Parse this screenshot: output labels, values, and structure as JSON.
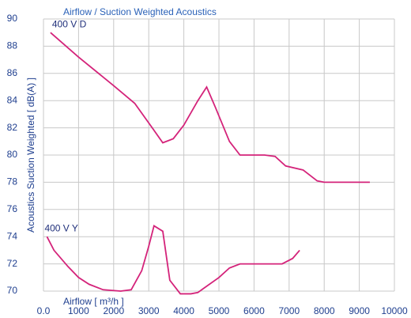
{
  "chart_data": {
    "type": "line",
    "title": "Airflow / Suction Weighted Acoustics",
    "x_label": "Airflow [ m³/h ]",
    "y_label": "Acoustics Suction Weighted [ dB(A) ]",
    "xlim": [
      0,
      10000
    ],
    "xticks": [
      {
        "value": 0,
        "label": "0.0"
      },
      1000,
      2000,
      3000,
      4000,
      5000,
      6000,
      7000,
      8000,
      9000,
      10000
    ],
    "ylim": [
      70,
      90
    ],
    "yticks": [
      70,
      72,
      74,
      76,
      78,
      80,
      82,
      84,
      86,
      88,
      90
    ],
    "grid": true,
    "series": [
      {
        "name": "400 V D",
        "color": "#d4237a",
        "x": [
          200,
          1000,
          2000,
          2600,
          3100,
          3400,
          3700,
          4000,
          4400,
          4650,
          4900,
          5300,
          5600,
          6000,
          6300,
          6600,
          6900,
          7400,
          7800,
          8000,
          9300
        ],
        "values": [
          89,
          87.2,
          85.1,
          83.8,
          82,
          80.9,
          81.2,
          82.2,
          84,
          85,
          83.5,
          81,
          80,
          80,
          80,
          79.9,
          79.2,
          78.9,
          78.1,
          78,
          78
        ]
      },
      {
        "name": "400 V Y",
        "color": "#d4237a",
        "x": [
          100,
          300,
          700,
          1000,
          1300,
          1700,
          2200,
          2500,
          2800,
          3000,
          3150,
          3400,
          3600,
          3900,
          4200,
          4400,
          5000,
          5300,
          5600,
          6000,
          6800,
          7100,
          7300
        ],
        "values": [
          74,
          73,
          71.8,
          71,
          70.5,
          70.1,
          70,
          70.1,
          71.5,
          73.3,
          74.8,
          74.4,
          70.8,
          69.8,
          69.8,
          69.9,
          71,
          71.7,
          72,
          72,
          72,
          72.4,
          73
        ]
      }
    ]
  }
}
